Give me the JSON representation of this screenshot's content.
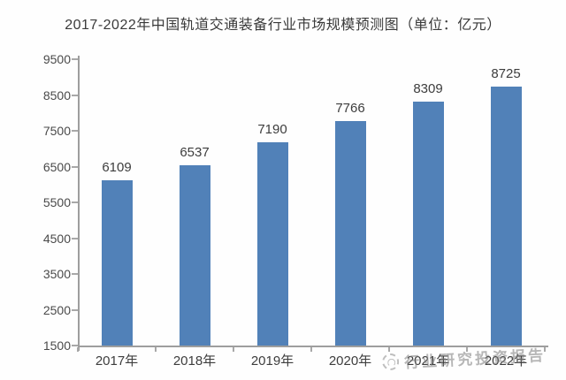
{
  "chart_data": {
    "type": "bar",
    "title": "2017-2022年中国轨道交通装备行业市场规模预测图（单位：亿元）",
    "unit_label": "亿元",
    "categories": [
      "2017年",
      "2018年",
      "2019年",
      "2020年",
      "2021年",
      "2022年"
    ],
    "values": [
      6109,
      6537,
      7190,
      7766,
      8309,
      8725
    ],
    "data_labels_shown": true,
    "ylim": [
      1500,
      9500
    ],
    "ytick_interval": 1000,
    "ytick_labels": [
      "1500",
      "2500",
      "3500",
      "4500",
      "5500",
      "6500",
      "7500",
      "8500",
      "9500"
    ],
    "grid": false,
    "legend": "none",
    "bar_color": "#5181b8",
    "axis_color": "#9e9e9e",
    "text_color": "#3d3d3d"
  },
  "watermark": {
    "icon": "seal-logo",
    "text": "行业研究投资报告",
    "color": "#7d7d7d"
  }
}
